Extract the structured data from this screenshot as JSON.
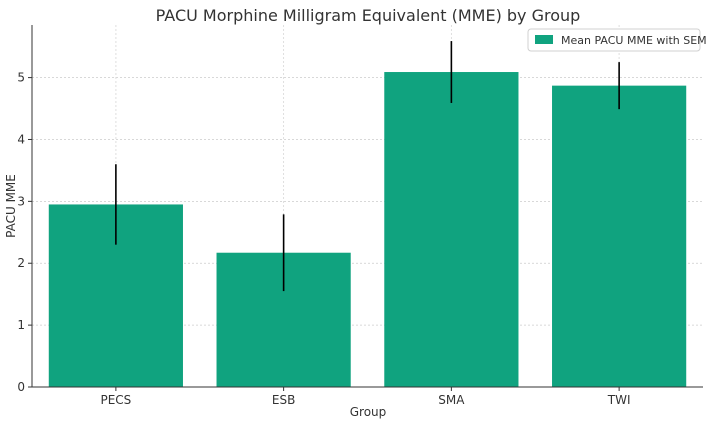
{
  "chart_data": {
    "type": "bar",
    "title": "PACU Morphine Milligram Equivalent (MME) by Group",
    "xlabel": "Group",
    "ylabel": "PACU MME",
    "categories": [
      "PECS",
      "ESB",
      "SMA",
      "TWI"
    ],
    "values": [
      2.95,
      2.17,
      5.09,
      4.87
    ],
    "errors": [
      0.65,
      0.62,
      0.5,
      0.38
    ],
    "ylim": [
      0,
      5.85
    ],
    "yticks": [
      "0",
      "1",
      "2",
      "3",
      "4",
      "5"
    ],
    "grid": true,
    "legend": {
      "label": "Mean PACU MME with SEM",
      "position": "top-right"
    },
    "bar_color": "#10a37f",
    "error_color": "#000000"
  }
}
